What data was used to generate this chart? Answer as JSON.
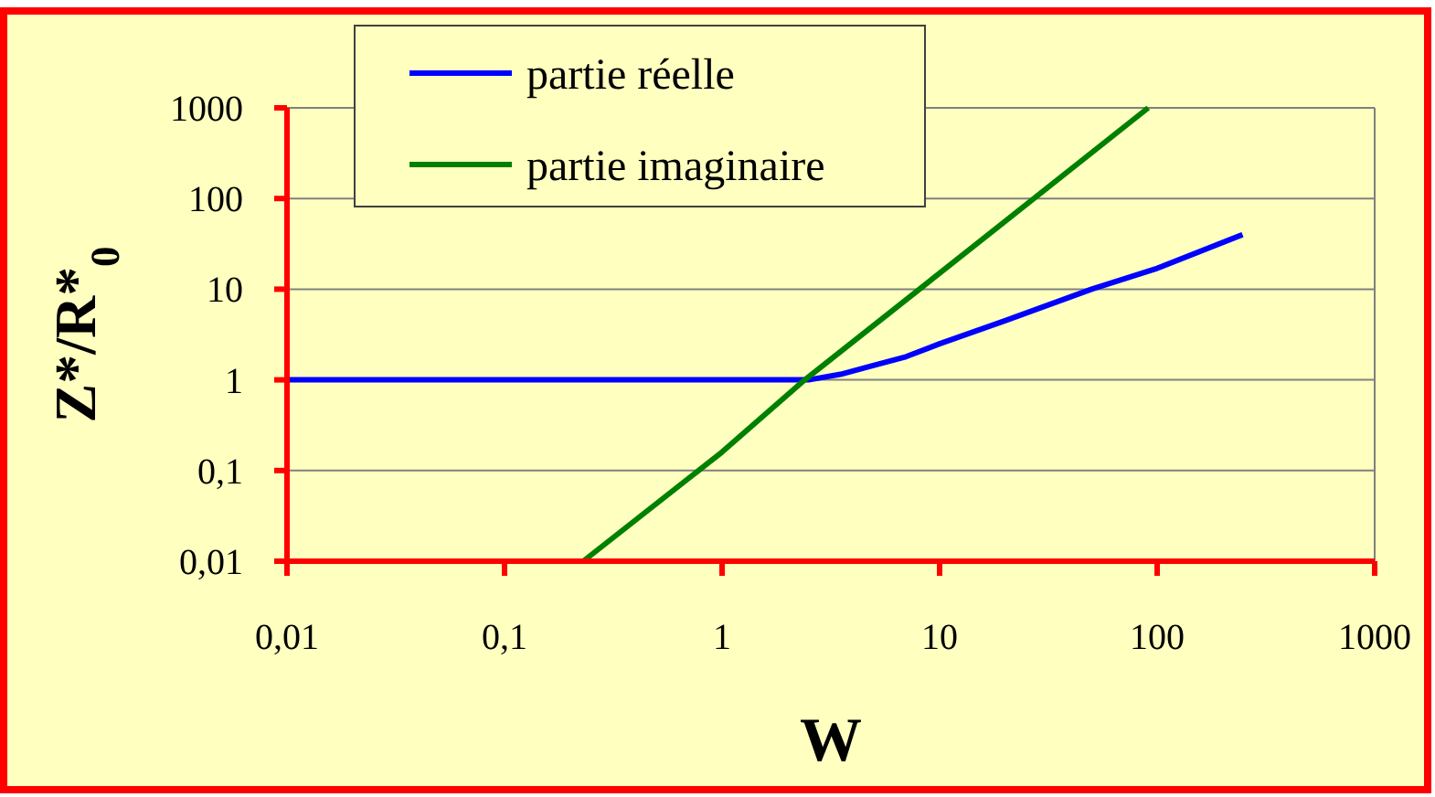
{
  "chart_data": {
    "type": "line",
    "xlabel": "W",
    "ylabel": "Z*/R*$_{0}$",
    "log": "xy",
    "grid": "y",
    "legend": "top",
    "xlim": [
      0.01,
      1000
    ],
    "ylim": [
      0.01,
      1000
    ],
    "xticks": [
      {
        "value": 0.01,
        "label": "0,01"
      },
      {
        "value": 0.1,
        "label": "0,1"
      },
      1,
      10,
      100,
      1000
    ],
    "yticks": [
      {
        "value": 0.01,
        "label": "0,01"
      },
      {
        "value": 0.1,
        "label": "0,1"
      },
      1,
      10,
      100,
      1000
    ],
    "series": [
      {
        "name": "partie réelle",
        "color": "#0000ff",
        "x": [
          0.01,
          0.1,
          1,
          2.5,
          3.5,
          5,
          7,
          10,
          20,
          50,
          100,
          247
        ],
        "values": [
          1,
          1,
          1,
          1,
          1.15,
          1.45,
          1.8,
          2.5,
          4.5,
          10,
          17,
          40
        ]
      },
      {
        "name": "partie imaginaire",
        "color": "#008000",
        "x": [
          0.23,
          1,
          2.4,
          10,
          91
        ],
        "values": [
          0.01,
          0.16,
          1,
          15,
          1000
        ]
      }
    ]
  }
}
